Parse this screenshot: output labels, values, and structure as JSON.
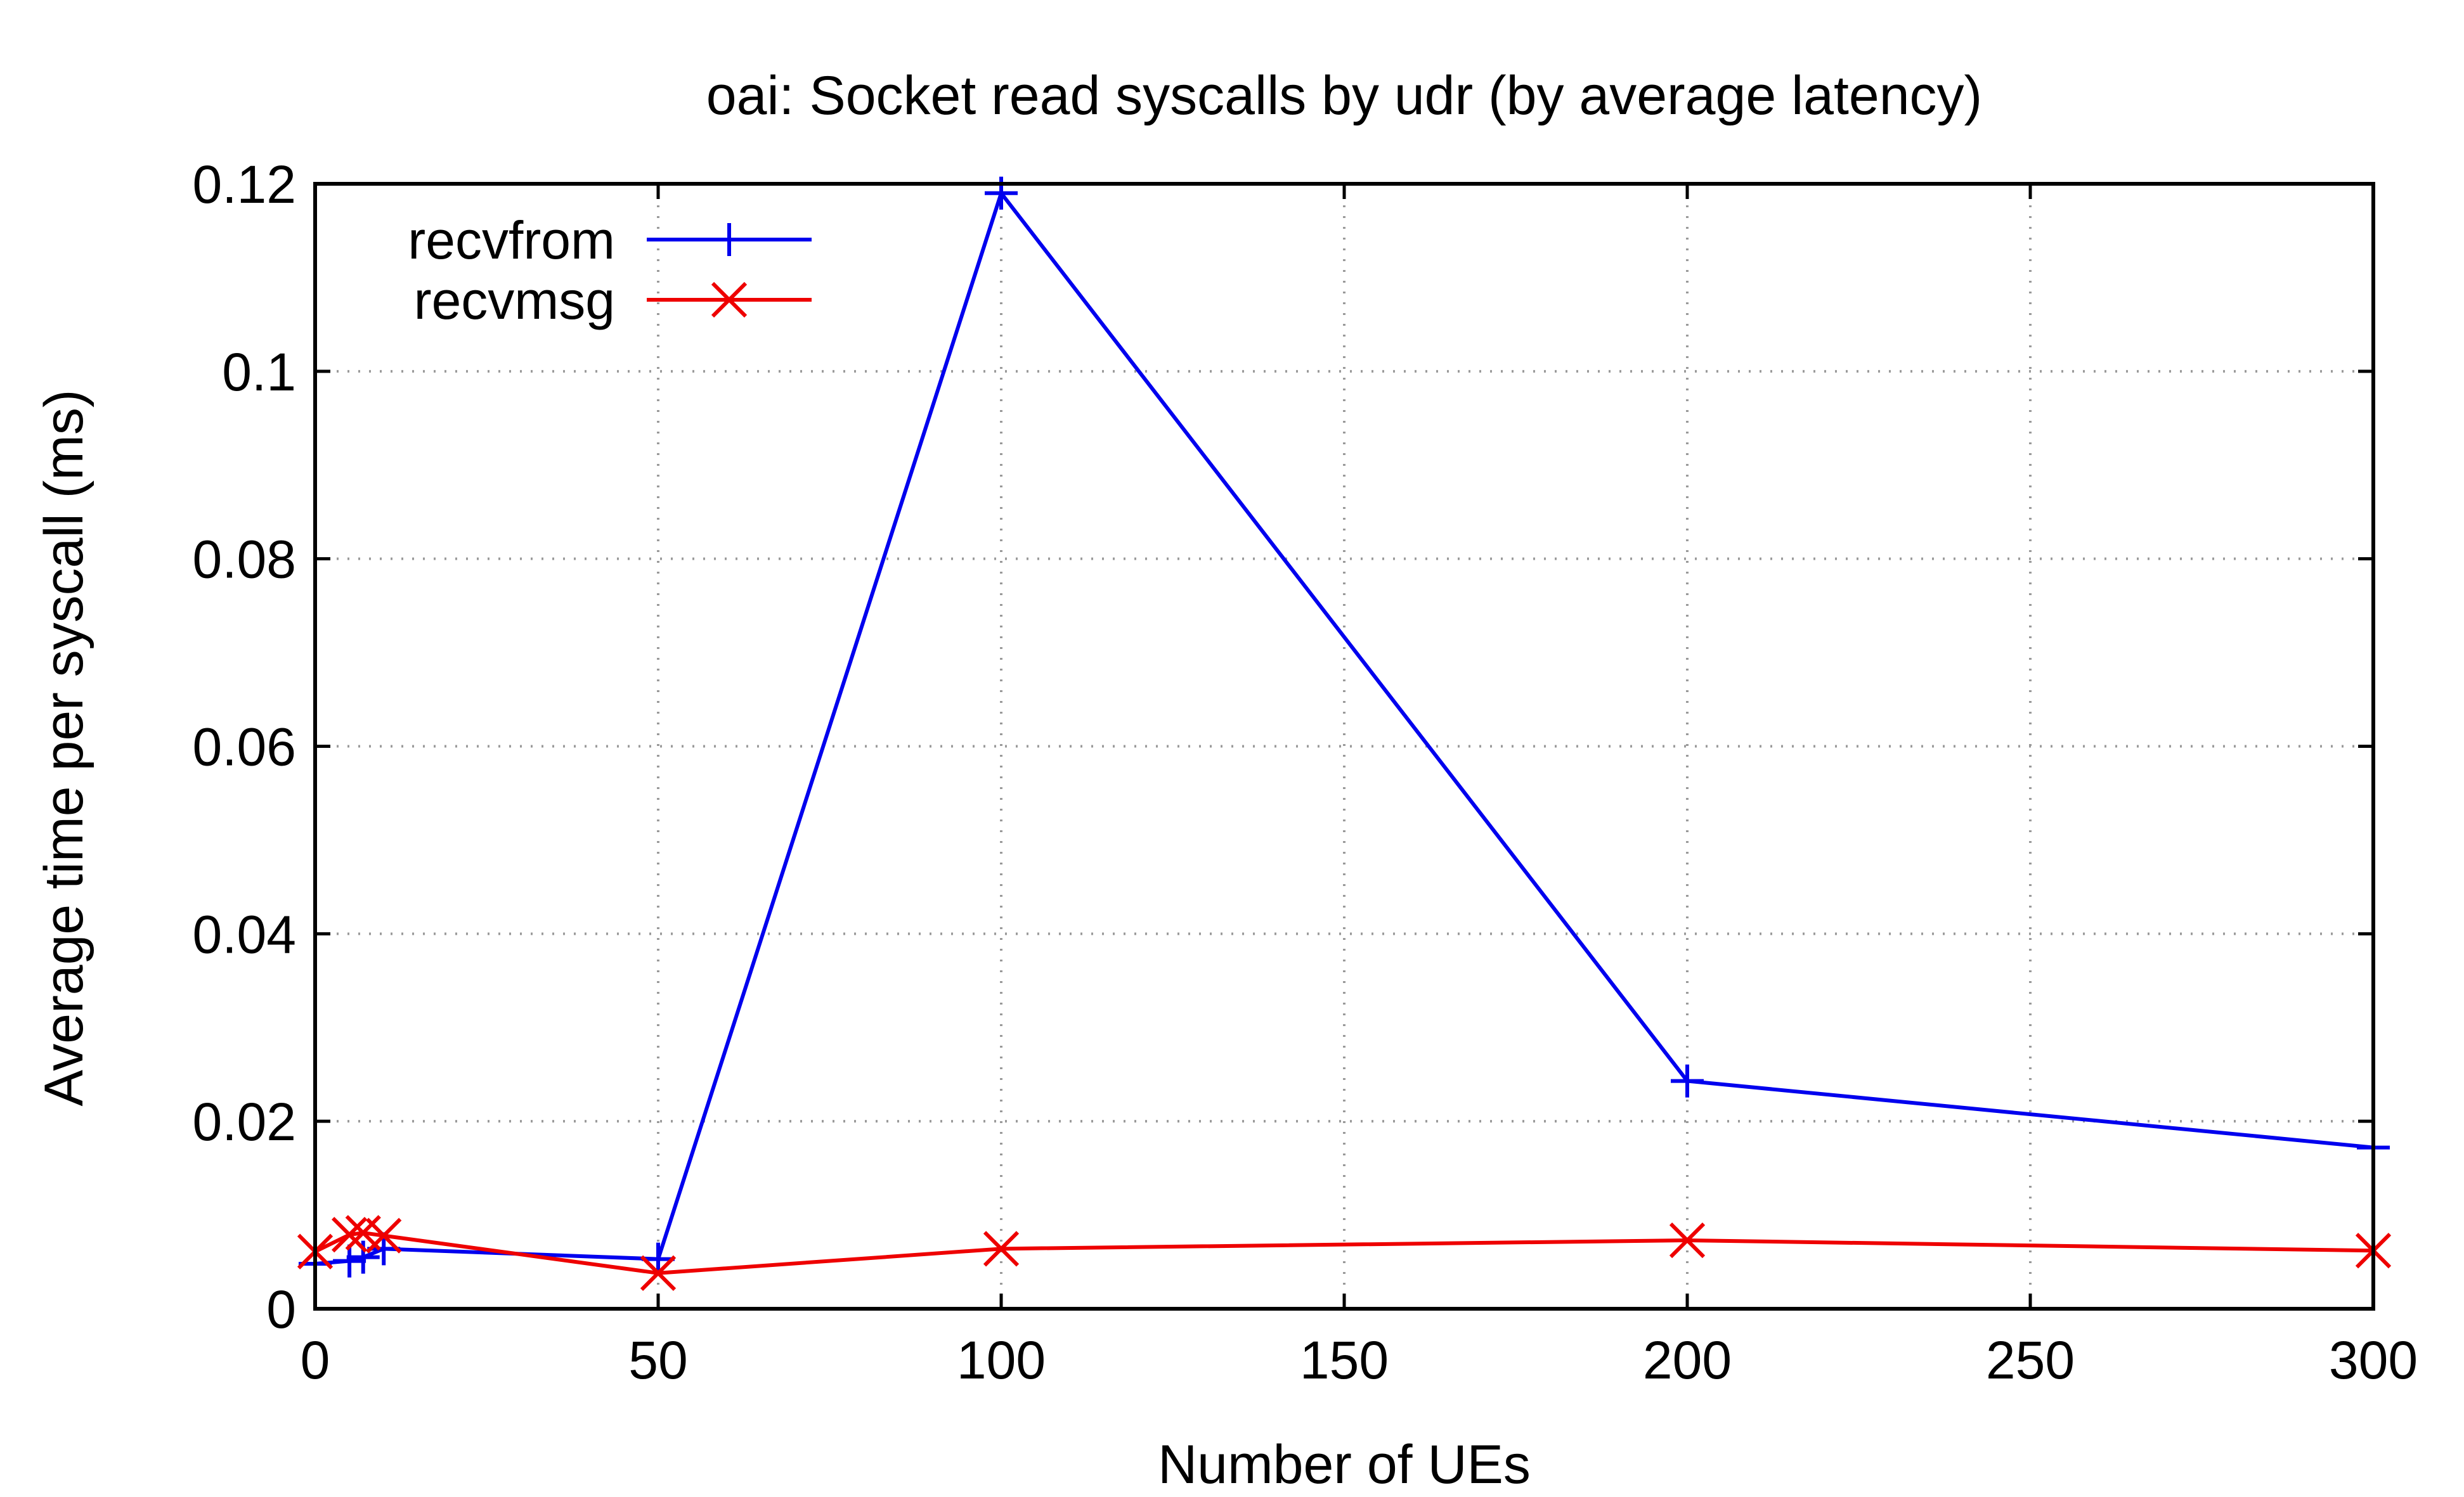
{
  "chart_data": {
    "type": "line",
    "title": "oai: Socket read syscalls by udr (by average latency)",
    "xlabel": "Number of UEs",
    "ylabel": "Average time per syscall (ms)",
    "xlim": [
      0,
      300
    ],
    "ylim": [
      0,
      0.12
    ],
    "x_ticks": [
      0,
      50,
      100,
      150,
      200,
      250,
      300
    ],
    "x_tick_labels": [
      "0",
      "50",
      "100",
      "150",
      "200",
      "250",
      "300"
    ],
    "y_ticks": [
      0,
      0.02,
      0.04,
      0.06,
      0.08,
      0.1,
      0.12
    ],
    "y_tick_labels": [
      "0",
      "0.02",
      "0.04",
      "0.06",
      "0.08",
      "0.1",
      "0.12"
    ],
    "grid": true,
    "legend_position": "top-left",
    "series": [
      {
        "name": "recvfrom",
        "color": "#0000ee",
        "marker": "plus",
        "x": [
          0,
          5,
          7,
          10,
          50,
          100,
          200,
          300
        ],
        "y": [
          0.0048,
          0.0051,
          0.0055,
          0.0064,
          0.0053,
          0.119,
          0.0243,
          0.0172
        ]
      },
      {
        "name": "recvmsg",
        "color": "#ee0000",
        "marker": "cross",
        "x": [
          0,
          5,
          7,
          10,
          50,
          100,
          200,
          300
        ],
        "y": [
          0.0061,
          0.0079,
          0.0081,
          0.0078,
          0.0038,
          0.0064,
          0.0073,
          0.0062
        ]
      }
    ]
  }
}
